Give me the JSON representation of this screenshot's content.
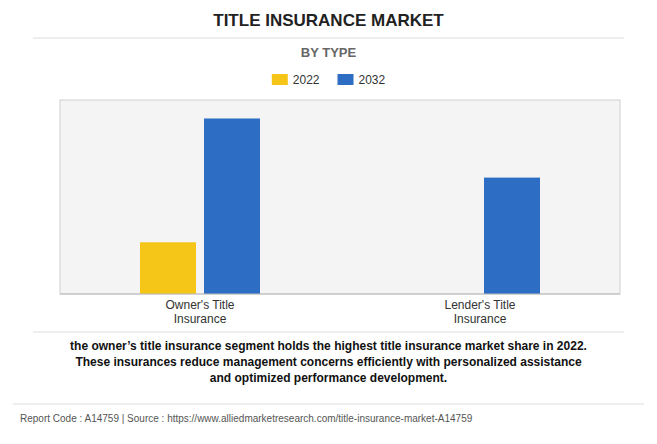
{
  "chart_data": {
    "type": "bar",
    "title": "TITLE INSURANCE MARKET",
    "subtitle": "BY TYPE",
    "categories": [
      "Owner's Title\nInsurance",
      "Lender's Title\nInsurance"
    ],
    "series": [
      {
        "name": "2022",
        "color": "#F5C518",
        "values": [
          0.28,
          0.0
        ]
      },
      {
        "name": "2032",
        "color": "#2D6EC4",
        "values": [
          0.95,
          0.63
        ]
      }
    ],
    "ylim": [
      0,
      1.05
    ],
    "yticks": [],
    "grid": false,
    "legend": "top",
    "tick_labels": "x",
    "annotations": [
      "the owner’s title insurance segment holds the highest title insurance market share in 2022.\nThese insurances reduce management concerns efficiently with personalized assistance\nand optimized performance development.",
      "Report Code : A14759  |  Source : https://www.alliedmarketresearch.com/title-insurance-market-A14759"
    ]
  }
}
